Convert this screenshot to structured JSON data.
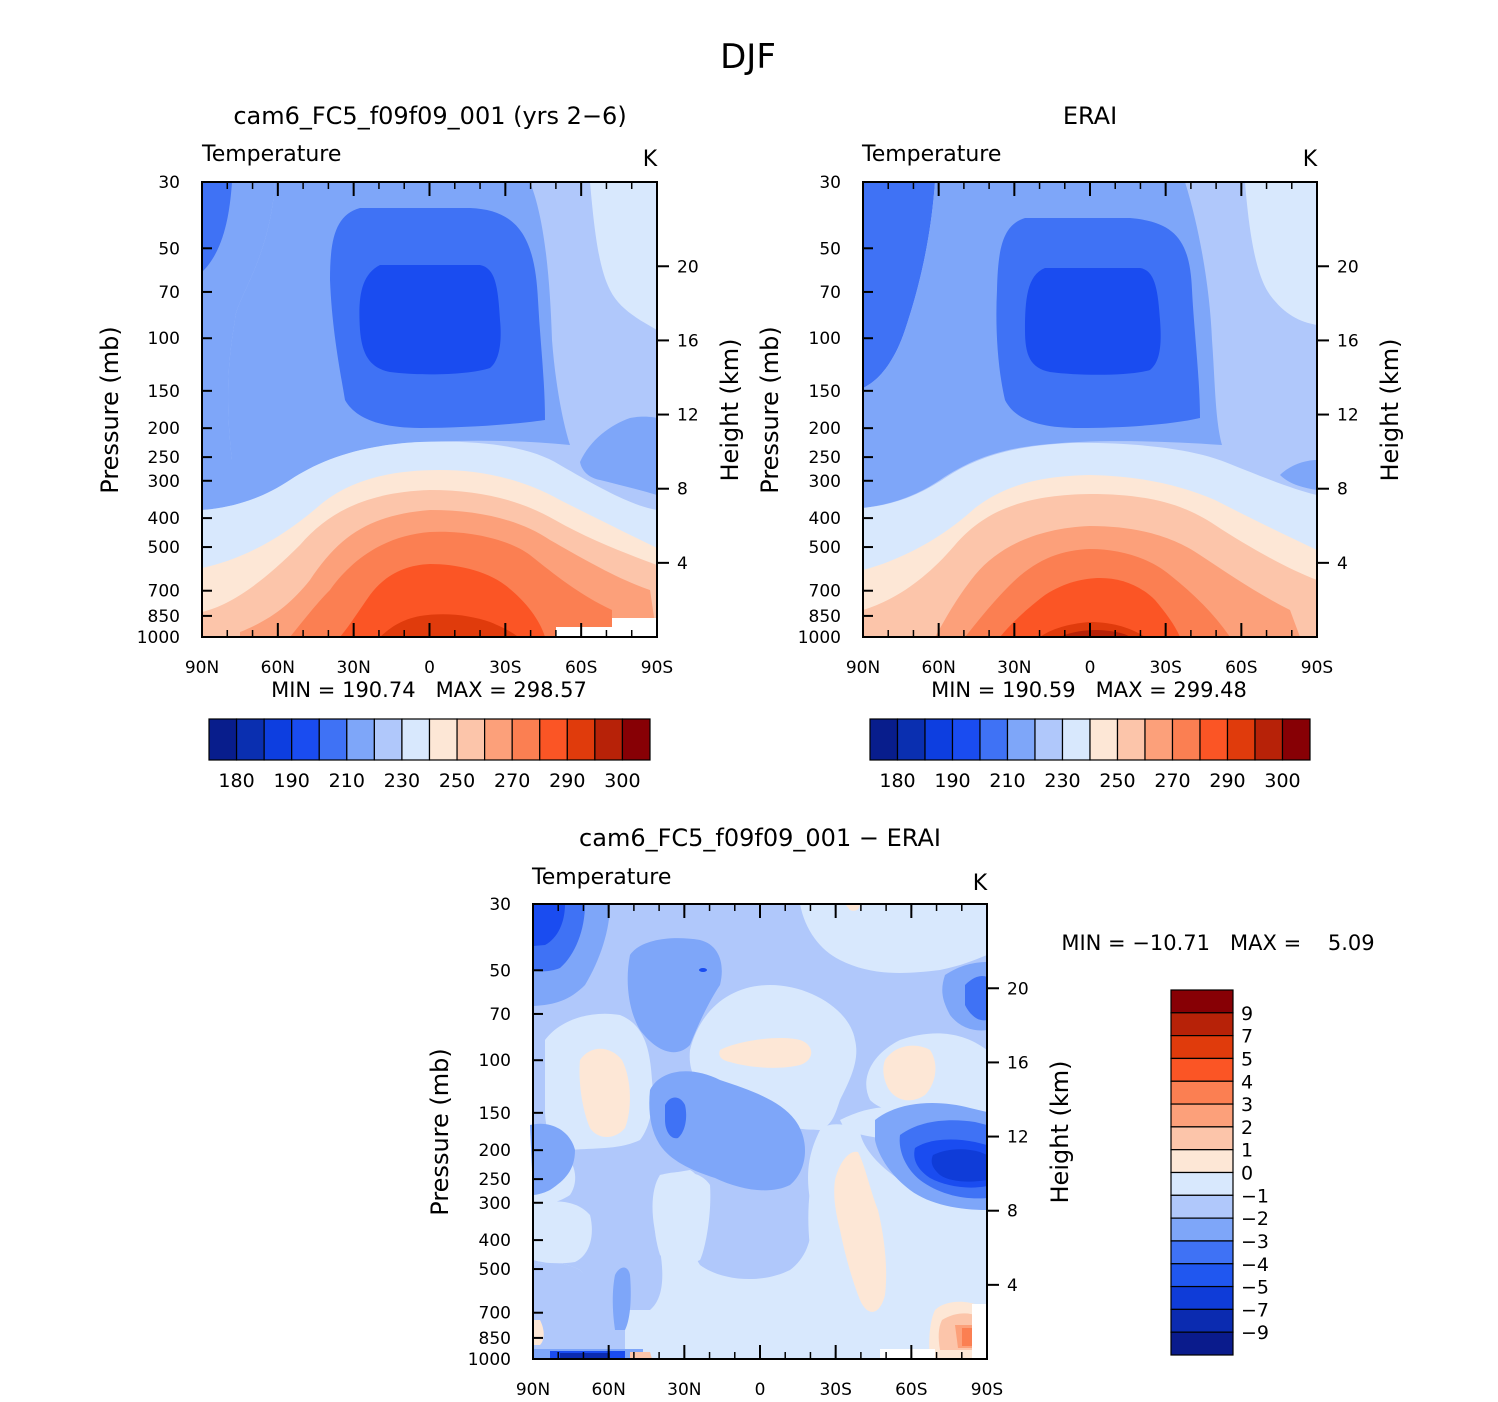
{
  "figure": {
    "title": "DJF"
  },
  "colors": {
    "temp_levels": [
      "#081d8c",
      "#0a2fb0",
      "#0d3ee0",
      "#1a4cf0",
      "#3f72f5",
      "#7ea6f9",
      "#b0c8fb",
      "#d8e8fd",
      "#fde7d6",
      "#fcc5aa",
      "#fca07a",
      "#fb7f52",
      "#fb5525",
      "#e03b0c",
      "#b72208",
      "#870005"
    ],
    "diff_levels": [
      "#0a1b8c",
      "#0b2bb0",
      "#0f3cd8",
      "#2057f0",
      "#3f72f5",
      "#7ea6f9",
      "#b0c8fb",
      "#d8e8fd",
      "#fde7d6",
      "#fcc5aa",
      "#fca07a",
      "#fb7f52",
      "#fb5525",
      "#e03b0c",
      "#b72208",
      "#870005"
    ]
  },
  "chart_data": [
    {
      "type": "heatmap",
      "title": "cam6_FC5_f09f09_001 (yrs 2−6)",
      "left_string": "Temperature",
      "right_string": "K",
      "xlabel": "",
      "ylabel": "Pressure (mb)",
      "ylabel_right": "Height (km)",
      "x_ticks": [
        "90N",
        "60N",
        "30N",
        "0",
        "30S",
        "60S",
        "90S"
      ],
      "y_ticks": [
        "30",
        "50",
        "70",
        "100",
        "150",
        "200",
        "250",
        "300",
        "400",
        "500",
        "700",
        "850",
        "1000"
      ],
      "y_right_ticks": [
        "4",
        "8",
        "12",
        "16",
        "20"
      ],
      "minmax": "MIN = 190.74   MAX = 298.57",
      "colorbar_labels": [
        "180",
        "190",
        "210",
        "230",
        "250",
        "270",
        "290",
        "300"
      ],
      "colorbar_levels": [
        180,
        185,
        190,
        200,
        210,
        220,
        230,
        240,
        250,
        260,
        270,
        280,
        290,
        295,
        300
      ],
      "range": {
        "min": 190.74,
        "max": 298.57
      }
    },
    {
      "type": "heatmap",
      "title": "ERAI",
      "left_string": "Temperature",
      "right_string": "K",
      "xlabel": "",
      "ylabel": "Pressure (mb)",
      "ylabel_right": "Height (km)",
      "x_ticks": [
        "90N",
        "60N",
        "30N",
        "0",
        "30S",
        "60S",
        "90S"
      ],
      "y_ticks": [
        "30",
        "50",
        "70",
        "100",
        "150",
        "200",
        "250",
        "300",
        "400",
        "500",
        "700",
        "850",
        "1000"
      ],
      "y_right_ticks": [
        "4",
        "8",
        "12",
        "16",
        "20"
      ],
      "minmax": "MIN = 190.59   MAX = 299.48",
      "colorbar_labels": [
        "180",
        "190",
        "210",
        "230",
        "250",
        "270",
        "290",
        "300"
      ],
      "colorbar_levels": [
        180,
        185,
        190,
        200,
        210,
        220,
        230,
        240,
        250,
        260,
        270,
        280,
        290,
        295,
        300
      ],
      "range": {
        "min": 190.59,
        "max": 299.48
      }
    },
    {
      "type": "heatmap",
      "title": "cam6_FC5_f09f09_001 − ERAI",
      "left_string": "Temperature",
      "right_string": "K",
      "xlabel": "",
      "ylabel": "Pressure (mb)",
      "ylabel_right": "Height (km)",
      "x_ticks": [
        "90N",
        "60N",
        "30N",
        "0",
        "30S",
        "60S",
        "90S"
      ],
      "y_ticks": [
        "30",
        "50",
        "70",
        "100",
        "150",
        "200",
        "250",
        "300",
        "400",
        "500",
        "700",
        "850",
        "1000"
      ],
      "y_right_ticks": [
        "4",
        "8",
        "12",
        "16",
        "20"
      ],
      "minmax": "MIN = −10.71   MAX =    5.09",
      "colorbar_labels": [
        "9",
        "7",
        "5",
        "4",
        "3",
        "2",
        "1",
        "0",
        "−1",
        "−2",
        "−3",
        "−4",
        "−5",
        "−7",
        "−9"
      ],
      "colorbar_levels": [
        -9,
        -7,
        -5,
        -4,
        -3,
        -2,
        -1,
        0,
        1,
        2,
        3,
        4,
        5,
        7,
        9
      ],
      "range": {
        "min": -10.71,
        "max": 5.09
      }
    }
  ]
}
